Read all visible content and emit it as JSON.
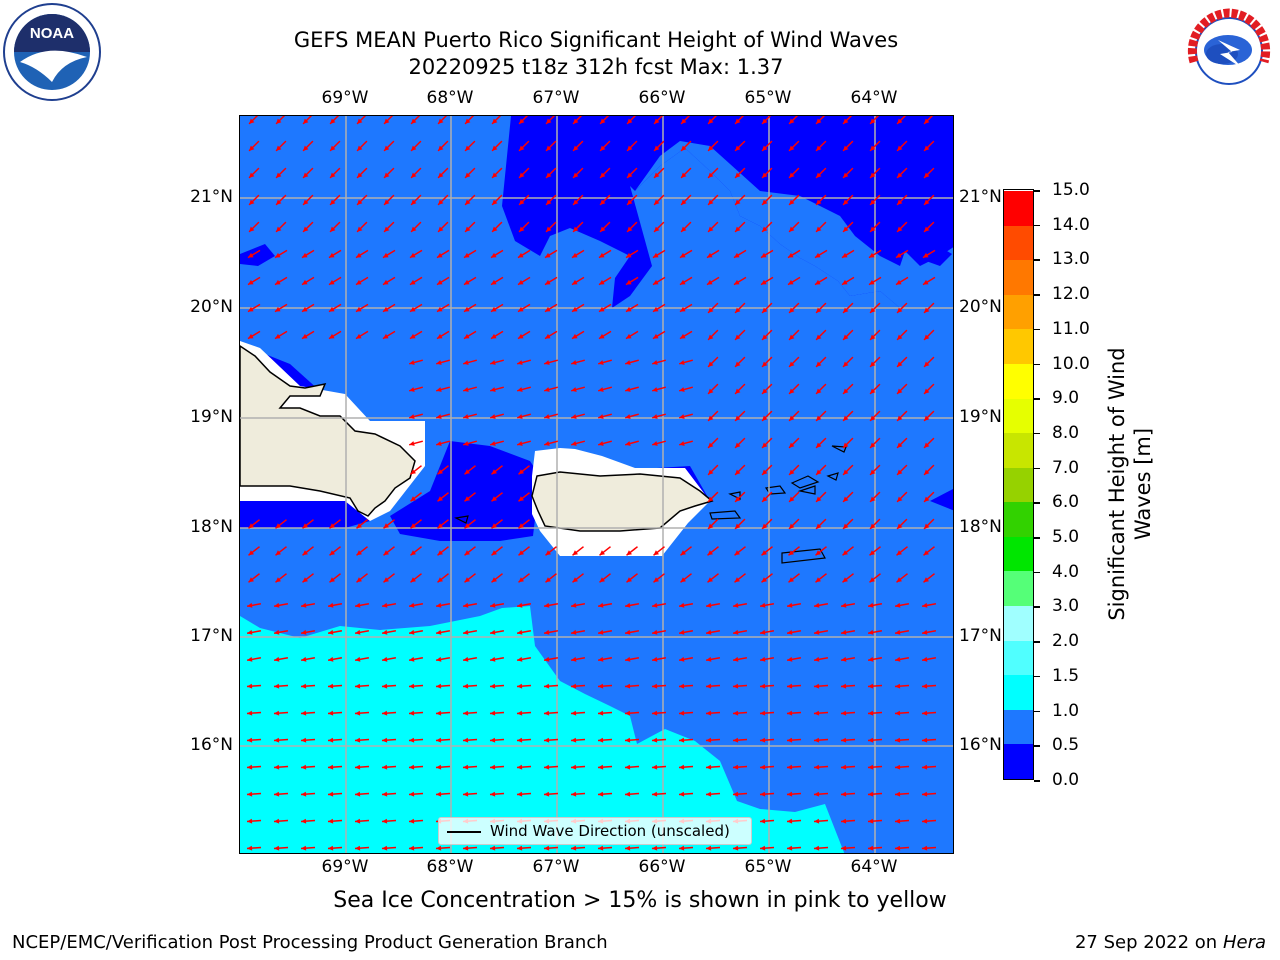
{
  "title": {
    "line1": "GEFS MEAN Puerto Rico Significant Height of Wind Waves",
    "line2": "20220925 t18z 312h fcst   Max: 1.37"
  },
  "axes": {
    "lon_ticks": [
      "69°W",
      "68°W",
      "67°W",
      "66°W",
      "65°W",
      "64°W"
    ],
    "lat_ticks": [
      "21°N",
      "20°N",
      "19°N",
      "18°N",
      "17°N",
      "16°N"
    ]
  },
  "colorbar": {
    "label": "Significant Height of Wind Waves [m]",
    "ticks": [
      "0.0",
      "0.5",
      "1.0",
      "1.5",
      "2.0",
      "3.0",
      "4.0",
      "5.0",
      "6.0",
      "7.0",
      "8.0",
      "9.0",
      "10.0",
      "11.0",
      "12.0",
      "13.0",
      "14.0",
      "15.0"
    ],
    "colors": [
      "#0000ff",
      "#1e78ff",
      "#00ffff",
      "#50ffff",
      "#a0ffff",
      "#55ff78",
      "#00e600",
      "#32d200",
      "#96d200",
      "#c8e600",
      "#e6ff00",
      "#ffff00",
      "#ffc800",
      "#ffa000",
      "#ff7800",
      "#ff4b00",
      "#ff0000"
    ]
  },
  "legend": {
    "label": "Wind Wave Direction (unscaled)"
  },
  "caption": "Sea Ice Concentration > 15% is shown in pink to yellow",
  "footer": {
    "left": "NCEP/EMC/Verification Post Processing Product Generation Branch",
    "right_prefix": "27 Sep 2022 on",
    "right_machine": "Hera"
  },
  "logos": {
    "left": "NOAA",
    "right": "NATIONAL WEATHER SERVICE"
  },
  "colors": {
    "band_0_0_5": "#0000ff",
    "band_0_5_1_0": "#1e78ff",
    "band_1_0_1_5": "#00ffff",
    "land": "#efecdc",
    "arrow": "#ff0000",
    "grid": "#b0b0b0"
  }
}
